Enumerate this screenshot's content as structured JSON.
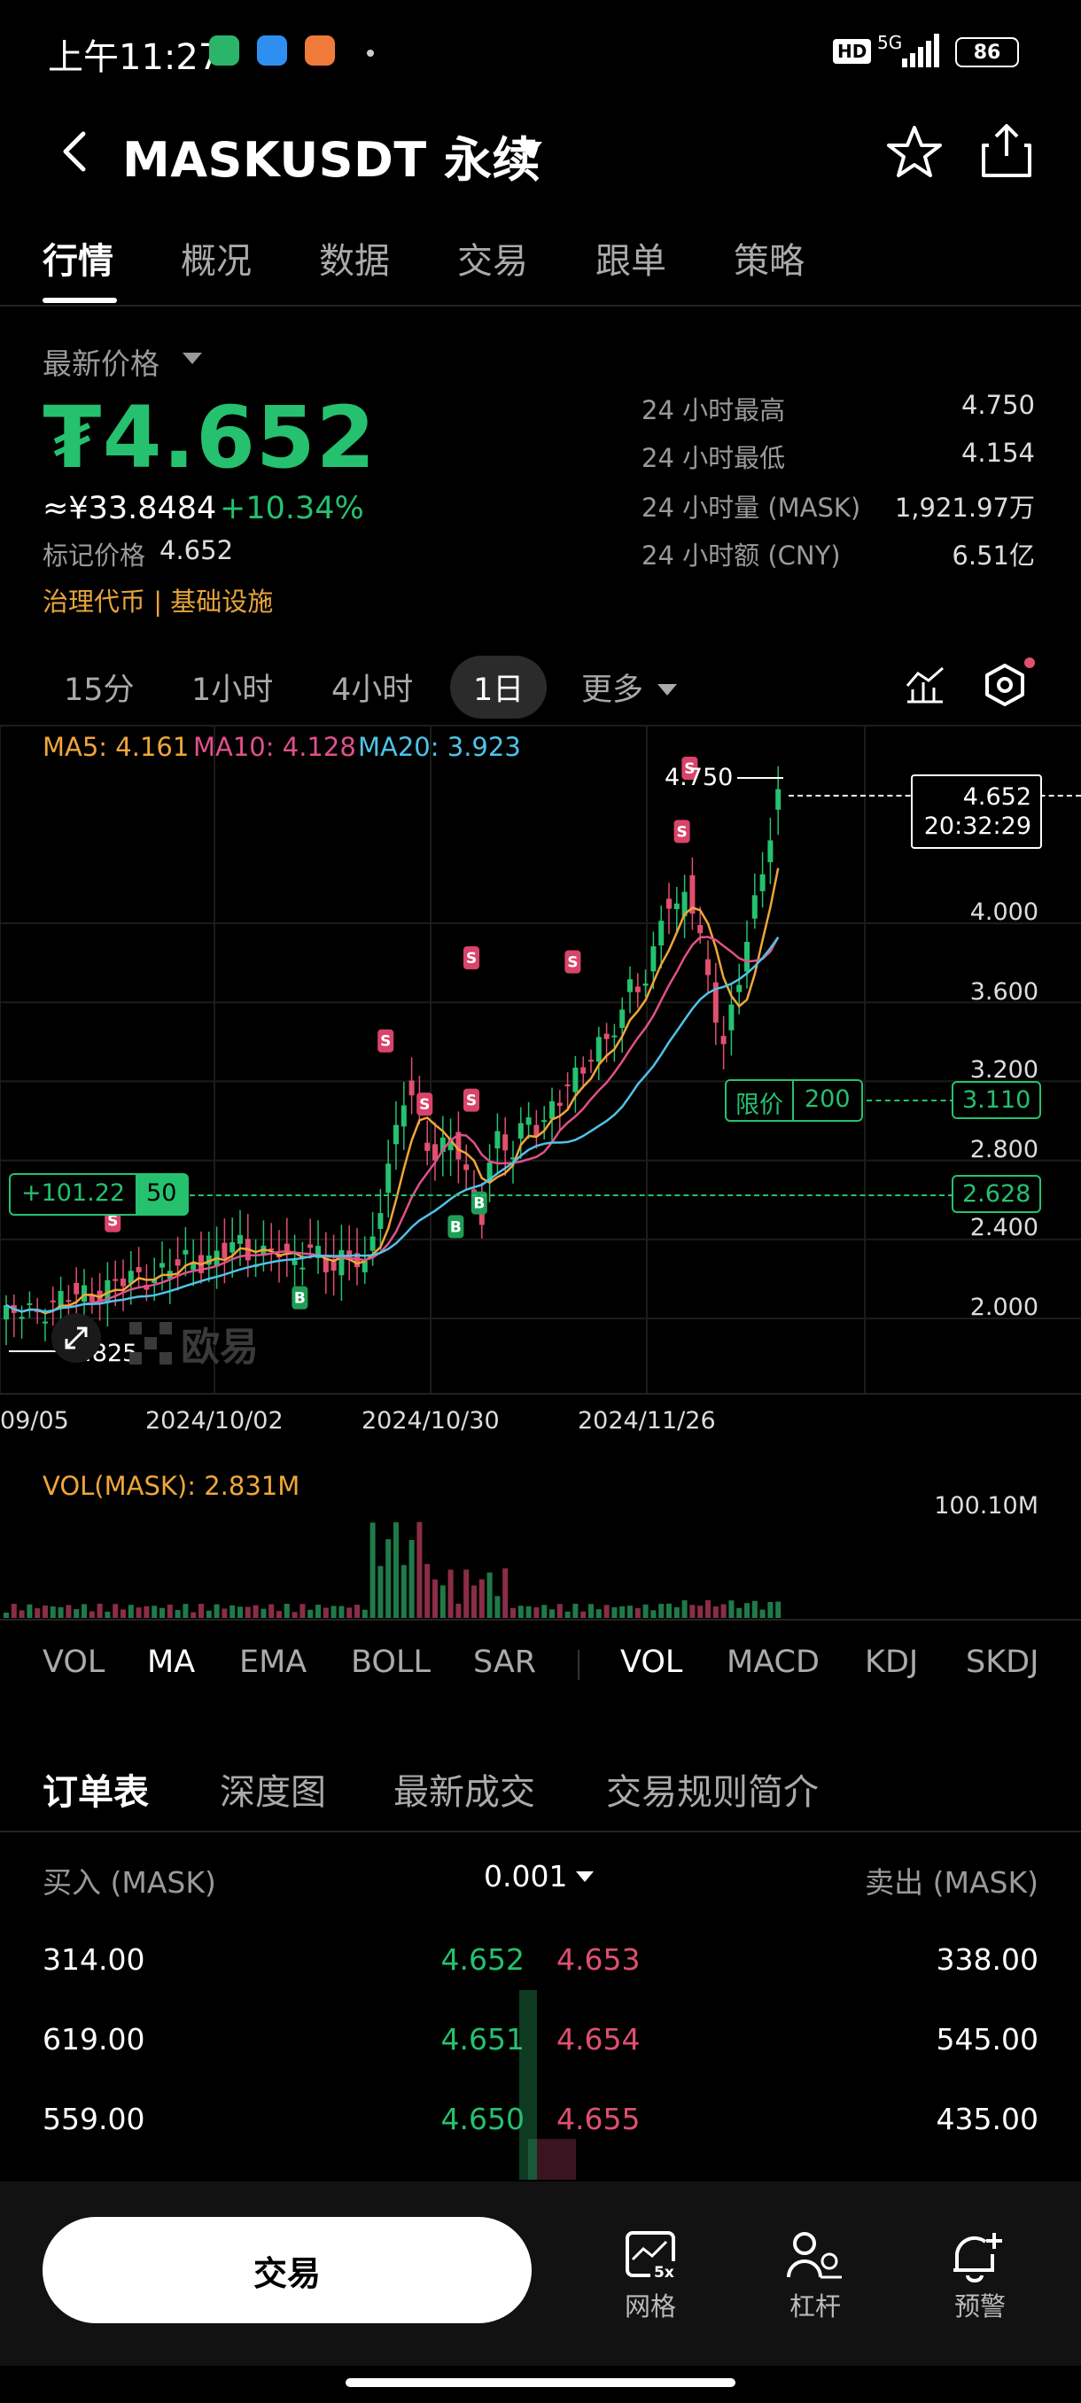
{
  "status_bar": {
    "time": "上午11:27",
    "network": "5G",
    "battery": "86"
  },
  "header": {
    "title": "MASKUSDT 永续",
    "back_icon": "chevron-left-icon",
    "star_icon": "star-icon",
    "share_icon": "share-icon"
  },
  "main_tabs": [
    "行情",
    "概况",
    "数据",
    "交易",
    "跟单",
    "策略"
  ],
  "price": {
    "label": "最新价格",
    "last": "₮4.652",
    "cny": "≈¥33.8484",
    "change": "+10.34%",
    "mark_label": "标记价格",
    "mark_value": "4.652",
    "tags": "治理代币 | 基础设施"
  },
  "stats": [
    {
      "label": "24 小时最高",
      "value": "4.750"
    },
    {
      "label": "24 小时最低",
      "value": "4.154"
    },
    {
      "label": "24 小时量 (MASK)",
      "value": "1,921.97万"
    },
    {
      "label": "24 小时额 (CNY)",
      "value": "6.51亿"
    }
  ],
  "timeframes": [
    "15分",
    "1小时",
    "4小时",
    "1日",
    "更多"
  ],
  "active_timeframe": "1日",
  "ma_line": {
    "ma5": "MA5: 4.161",
    "ma10": "MA10: 4.128",
    "ma20": "MA20: 3.923",
    "ma5_color": "#f0a63a",
    "ma10_color": "#e0508a",
    "ma20_color": "#4fc3e8"
  },
  "chart_data": {
    "type": "candlestick",
    "y_ticks": [
      "4.000",
      "3.600",
      "3.200",
      "2.800",
      "2.400",
      "2.000"
    ],
    "x_ticks": [
      "09/05",
      "2024/10/02",
      "2024/10/30",
      "2024/11/26"
    ],
    "high_label": "4.750",
    "low_label": "1.825",
    "current_price": "4.652",
    "countdown": "20:32:29",
    "limit_order": {
      "label": "限价",
      "qty": "200",
      "price": "3.110"
    },
    "position": {
      "pnl": "+101.22",
      "qty": "50",
      "price": "2.628"
    },
    "watermark": "欧易"
  },
  "volume": {
    "label": "VOL(MASK): 2.831M",
    "max_label": "100.10M"
  },
  "indicators": [
    "VOL",
    "MA",
    "EMA",
    "BOLL",
    "SAR",
    "VOL",
    "MACD",
    "KDJ",
    "SKDJ"
  ],
  "order_tabs": [
    "订单表",
    "深度图",
    "最新成交",
    "交易规则简介"
  ],
  "orderbook": {
    "buy_header": "买入 (MASK)",
    "precision": "0.001",
    "sell_header": "卖出 (MASK)",
    "rows": [
      {
        "bid_qty": "314.00",
        "bid": "4.652",
        "ask": "4.653",
        "ask_qty": "338.00"
      },
      {
        "bid_qty": "619.00",
        "bid": "4.651",
        "ask": "4.654",
        "ask_qty": "545.00"
      },
      {
        "bid_qty": "559.00",
        "bid": "4.650",
        "ask": "4.655",
        "ask_qty": "435.00"
      }
    ]
  },
  "bottom": {
    "trade": "交易",
    "grid": "网格",
    "grid_badge": "5x",
    "leverage": "杠杆",
    "alert": "预警"
  },
  "colors": {
    "up": "#25c16f",
    "down": "#e0506e",
    "accent_orange": "#e8a43a"
  }
}
